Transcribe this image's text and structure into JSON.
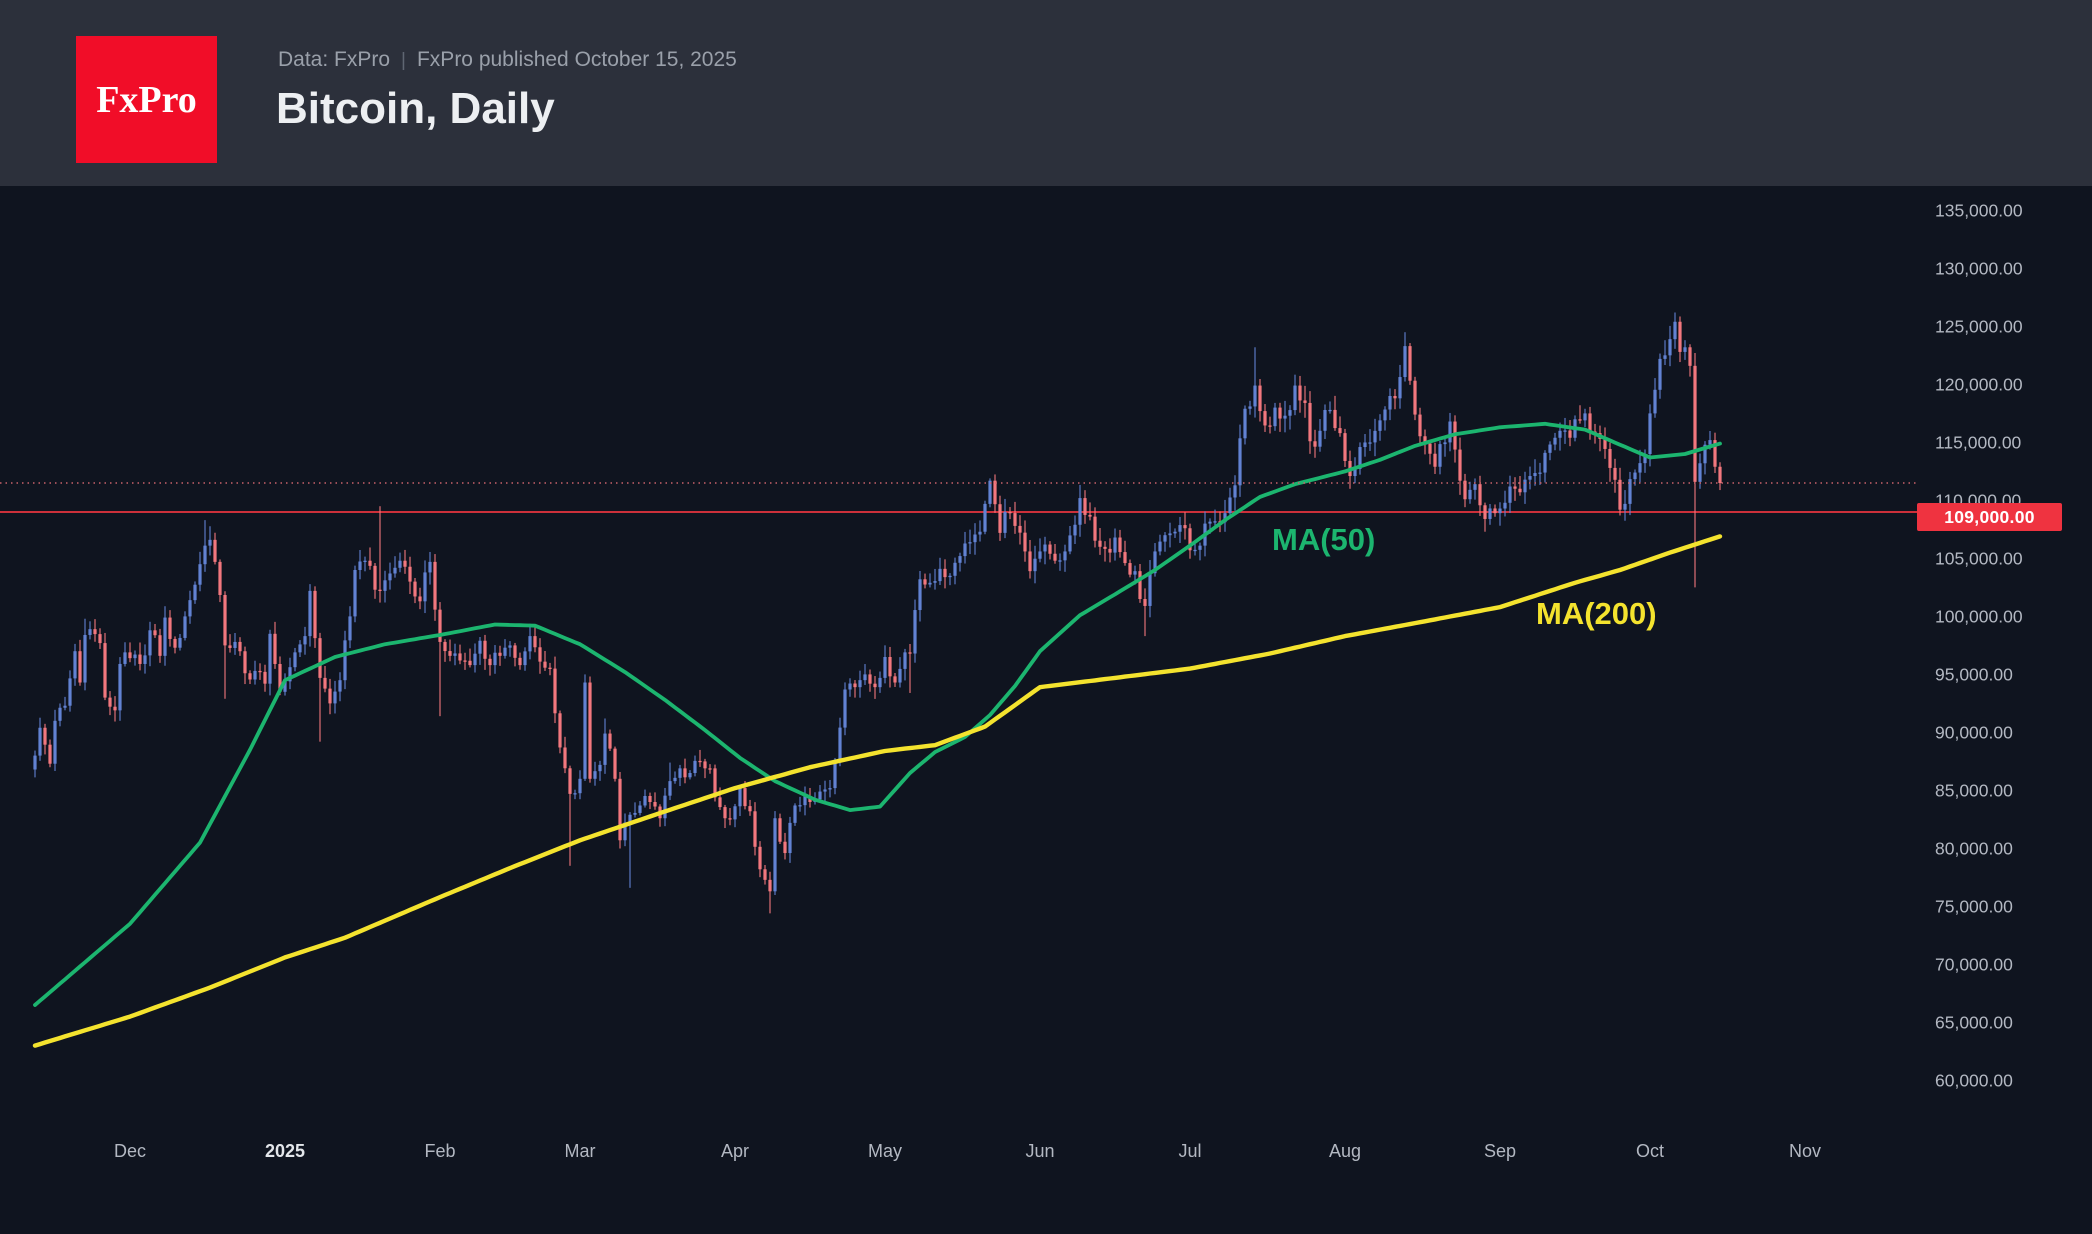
{
  "header": {
    "logo_text": "FxPro",
    "subtitle_data_source": "Data: FxPro",
    "subtitle_separator": "|",
    "subtitle_published": "FxPro published October 15, 2025",
    "title": "Bitcoin, Daily"
  },
  "colors": {
    "background": "#0f141f",
    "header_background": "#2c303b",
    "logo_red": "#f10d28",
    "title_text": "#edeff2",
    "subtitle_text": "#9aa0aa",
    "axis_text": "#b3b8c2",
    "year_tick_text": "#e3e6ea",
    "candle_up": "#6282d3",
    "candle_down": "#f2777e",
    "ma50": "#1cb56f",
    "ma200": "#f4e32e",
    "price_alert_line": "#e8353f",
    "badge_background": "#ef3340",
    "badge_text": "#ffffff",
    "last_price_line": "#c9626a"
  },
  "chart_data": {
    "type": "candlestick",
    "title": "Bitcoin, Daily",
    "units": "USD, values in thousands in anchor arrays",
    "time_range": "mid-Nov 2024 through Oct 15, 2025, daily candles",
    "x_axis": {
      "month_labels": [
        {
          "label": "Dec",
          "day": 19,
          "bold": false
        },
        {
          "label": "2025",
          "day": 50,
          "bold": true
        },
        {
          "label": "Feb",
          "day": 81,
          "bold": false
        },
        {
          "label": "Mar",
          "day": 109,
          "bold": false
        },
        {
          "label": "Apr",
          "day": 140,
          "bold": false
        },
        {
          "label": "May",
          "day": 170,
          "bold": false
        },
        {
          "label": "Jun",
          "day": 201,
          "bold": false
        },
        {
          "label": "Jul",
          "day": 231,
          "bold": false
        },
        {
          "label": "Aug",
          "day": 262,
          "bold": false
        },
        {
          "label": "Sep",
          "day": 293,
          "bold": false
        },
        {
          "label": "Oct",
          "day": 323,
          "bold": false
        },
        {
          "label": "Nov",
          "day": 354,
          "bold": false
        }
      ]
    },
    "y_axis": {
      "tick_values": [
        135000,
        130000,
        125000,
        120000,
        115000,
        110000,
        105000,
        100000,
        95000,
        90000,
        85000,
        80000,
        75000,
        70000,
        65000,
        60000
      ],
      "tick_format": "#,##0.00",
      "range_top": 136500,
      "range_bottom": 58000
    },
    "price_alert": {
      "value": 109000,
      "label": "109,000.00"
    },
    "last_price": {
      "value": 111500,
      "style": "dotted"
    },
    "ma50": {
      "label": "MA(50)",
      "period": 50,
      "points": [
        [
          0,
          66.5
        ],
        [
          19,
          73.5
        ],
        [
          33,
          80.5
        ],
        [
          43,
          88.5
        ],
        [
          50,
          94.5
        ],
        [
          60,
          96.5
        ],
        [
          70,
          97.6
        ],
        [
          81,
          98.4
        ],
        [
          92,
          99.3
        ],
        [
          100,
          99.2
        ],
        [
          109,
          97.6
        ],
        [
          118,
          95.2
        ],
        [
          126,
          92.8
        ],
        [
          134,
          90.2
        ],
        [
          141,
          87.8
        ],
        [
          148,
          85.8
        ],
        [
          156,
          84.2
        ],
        [
          163,
          83.3
        ],
        [
          169,
          83.6
        ],
        [
          175,
          86.5
        ],
        [
          180,
          88.3
        ],
        [
          186,
          89.6
        ],
        [
          191,
          91.5
        ],
        [
          196,
          94.0
        ],
        [
          201,
          97.0
        ],
        [
          209,
          100.1
        ],
        [
          216,
          101.9
        ],
        [
          224,
          104.0
        ],
        [
          231,
          106.1
        ],
        [
          238,
          108.3
        ],
        [
          245,
          110.3
        ],
        [
          252,
          111.4
        ],
        [
          262,
          112.5
        ],
        [
          269,
          113.5
        ],
        [
          276,
          114.7
        ],
        [
          284,
          115.7
        ],
        [
          293,
          116.3
        ],
        [
          302,
          116.6
        ],
        [
          310,
          116.1
        ],
        [
          317,
          114.8
        ],
        [
          323,
          113.7
        ],
        [
          330,
          114.0
        ],
        [
          337,
          114.9
        ]
      ]
    },
    "ma200": {
      "label": "MA(200)",
      "period": 200,
      "points": [
        [
          0,
          63.0
        ],
        [
          19,
          65.5
        ],
        [
          35,
          68.0
        ],
        [
          50,
          70.6
        ],
        [
          62,
          72.3
        ],
        [
          81,
          75.8
        ],
        [
          95,
          78.3
        ],
        [
          109,
          80.7
        ],
        [
          124,
          82.9
        ],
        [
          140,
          85.2
        ],
        [
          155,
          87.0
        ],
        [
          170,
          88.4
        ],
        [
          180,
          88.9
        ],
        [
          190,
          90.5
        ],
        [
          201,
          93.9
        ],
        [
          216,
          94.7
        ],
        [
          231,
          95.5
        ],
        [
          247,
          96.8
        ],
        [
          262,
          98.3
        ],
        [
          277,
          99.5
        ],
        [
          293,
          100.8
        ],
        [
          308,
          102.9
        ],
        [
          317,
          104.0
        ],
        [
          327,
          105.5
        ],
        [
          337,
          106.9
        ]
      ]
    },
    "candles": {
      "day0_date": "2024-11-12",
      "anchor_format": "[day, close, highOverride?, lowOverride?]",
      "anchors": [
        [
          0,
          88.0
        ],
        [
          1,
          90.4
        ],
        [
          3,
          87.3
        ],
        [
          4,
          91.0
        ],
        [
          6,
          92.3
        ],
        [
          8,
          97.0
        ],
        [
          9,
          94.3
        ],
        [
          10,
          98.4,
          99.8
        ],
        [
          11,
          98.9
        ],
        [
          13,
          97.7
        ],
        [
          14,
          93.0
        ],
        [
          16,
          91.9
        ],
        [
          17,
          95.9
        ],
        [
          19,
          96.4
        ],
        [
          21,
          95.9
        ],
        [
          23,
          98.8
        ],
        [
          25,
          96.6
        ],
        [
          26,
          99.9
        ],
        [
          28,
          97.3
        ],
        [
          30,
          100.0
        ],
        [
          31,
          101.4
        ],
        [
          33,
          104.5
        ],
        [
          34,
          106.1,
          108.3
        ],
        [
          35,
          106.6
        ],
        [
          36,
          104.7
        ],
        [
          38,
          97.5,
          null,
          92.9
        ],
        [
          40,
          97.8
        ],
        [
          42,
          95.1
        ],
        [
          44,
          95.3
        ],
        [
          46,
          94.2
        ],
        [
          47,
          98.5
        ],
        [
          49,
          93.5
        ],
        [
          50,
          94.4
        ],
        [
          52,
          96.9
        ],
        [
          54,
          98.3
        ],
        [
          55,
          102.2
        ],
        [
          57,
          94.7,
          null,
          89.2
        ],
        [
          59,
          92.5
        ],
        [
          61,
          94.5
        ],
        [
          63,
          100.0
        ],
        [
          64,
          104.0
        ],
        [
          66,
          104.8
        ],
        [
          68,
          102.3
        ],
        [
          69,
          102.2,
          109.5
        ],
        [
          71,
          103.7
        ],
        [
          73,
          104.8
        ],
        [
          75,
          103.0
        ],
        [
          77,
          101.3
        ],
        [
          79,
          104.7
        ],
        [
          81,
          97.8,
          null,
          91.4
        ],
        [
          83,
          96.6
        ],
        [
          85,
          96.2
        ],
        [
          87,
          95.8
        ],
        [
          89,
          97.9
        ],
        [
          91,
          95.8
        ],
        [
          93,
          96.6
        ],
        [
          95,
          97.5
        ],
        [
          97,
          95.8
        ],
        [
          99,
          98.3
        ],
        [
          101,
          96.1
        ],
        [
          103,
          95.5
        ],
        [
          105,
          88.7
        ],
        [
          107,
          84.7,
          null,
          78.5
        ],
        [
          109,
          86.0
        ],
        [
          110,
          94.3,
          95.0
        ],
        [
          111,
          86.0
        ],
        [
          113,
          87.2
        ],
        [
          114,
          89.9,
          91.2
        ],
        [
          116,
          86.0
        ],
        [
          117,
          80.7
        ],
        [
          119,
          82.9,
          null,
          76.6
        ],
        [
          121,
          83.7
        ],
        [
          123,
          84.0
        ],
        [
          125,
          82.6
        ],
        [
          127,
          85.8,
          87.4
        ],
        [
          129,
          86.9
        ],
        [
          131,
          86.5
        ],
        [
          133,
          87.5
        ],
        [
          135,
          86.9
        ],
        [
          136,
          84.4
        ],
        [
          138,
          82.6
        ],
        [
          139,
          82.5
        ],
        [
          141,
          85.2
        ],
        [
          143,
          83.2
        ],
        [
          145,
          78.2
        ],
        [
          147,
          76.3,
          null,
          74.4
        ],
        [
          148,
          82.6
        ],
        [
          150,
          79.6
        ],
        [
          152,
          83.7
        ],
        [
          154,
          84.5
        ],
        [
          155,
          84.0
        ],
        [
          157,
          84.9
        ],
        [
          159,
          85.2
        ],
        [
          160,
          87.5
        ],
        [
          162,
          93.7
        ],
        [
          164,
          93.9
        ],
        [
          166,
          95.0
        ],
        [
          167,
          94.2
        ],
        [
          169,
          94.7
        ],
        [
          170,
          96.5
        ],
        [
          172,
          94.3
        ],
        [
          174,
          96.9
        ],
        [
          175,
          96.8,
          null,
          93.4
        ],
        [
          177,
          103.2
        ],
        [
          179,
          102.9
        ],
        [
          181,
          104.1
        ],
        [
          183,
          103.5
        ],
        [
          185,
          105.2
        ],
        [
          187,
          106.4
        ],
        [
          189,
          107.3
        ],
        [
          190,
          109.7
        ],
        [
          191,
          111.7,
          111.9
        ],
        [
          193,
          107.2
        ],
        [
          194,
          109.0
        ],
        [
          196,
          107.8
        ],
        [
          198,
          105.6
        ],
        [
          199,
          103.9
        ],
        [
          201,
          105.6
        ],
        [
          203,
          105.4
        ],
        [
          204,
          104.8
        ],
        [
          206,
          105.6
        ],
        [
          208,
          107.9
        ],
        [
          209,
          110.2
        ],
        [
          211,
          108.6
        ],
        [
          213,
          106.0
        ],
        [
          215,
          105.5
        ],
        [
          216,
          106.8
        ],
        [
          218,
          104.6
        ],
        [
          220,
          103.9
        ],
        [
          221,
          101.5
        ],
        [
          222,
          100.9,
          null,
          98.3
        ],
        [
          224,
          105.6
        ],
        [
          226,
          107.0
        ],
        [
          228,
          107.3
        ],
        [
          230,
          107.6
        ],
        [
          231,
          105.7
        ],
        [
          233,
          106.1
        ],
        [
          234,
          108.0
        ],
        [
          236,
          108.2
        ],
        [
          238,
          108.9
        ],
        [
          240,
          111.3
        ],
        [
          242,
          117.9
        ],
        [
          244,
          119.9,
          123.2
        ],
        [
          245,
          117.7
        ],
        [
          247,
          116.4
        ],
        [
          248,
          118.0
        ],
        [
          250,
          117.3
        ],
        [
          252,
          119.9
        ],
        [
          254,
          118.4
        ],
        [
          255,
          115.1
        ],
        [
          257,
          116.0
        ],
        [
          259,
          117.8
        ],
        [
          261,
          115.8
        ],
        [
          262,
          113.4
        ],
        [
          263,
          112.1,
          null,
          111.0
        ],
        [
          265,
          114.6
        ],
        [
          267,
          115.0
        ],
        [
          269,
          116.9
        ],
        [
          271,
          119.0
        ],
        [
          272,
          118.8
        ],
        [
          274,
          123.3,
          124.5
        ],
        [
          276,
          117.4
        ],
        [
          278,
          114.9
        ],
        [
          280,
          112.9
        ],
        [
          282,
          115.0
        ],
        [
          283,
          116.8
        ],
        [
          285,
          111.7
        ],
        [
          286,
          110.1
        ],
        [
          288,
          111.4
        ],
        [
          290,
          108.4,
          null,
          107.3
        ],
        [
          292,
          108.9
        ],
        [
          293,
          109.3
        ],
        [
          295,
          111.2
        ],
        [
          297,
          110.7
        ],
        [
          299,
          112.1
        ],
        [
          301,
          112.4
        ],
        [
          302,
          114.1
        ],
        [
          304,
          115.4
        ],
        [
          305,
          116.0
        ],
        [
          307,
          115.4
        ],
        [
          309,
          116.9
        ],
        [
          310,
          117.5,
          117.9
        ],
        [
          312,
          115.8
        ],
        [
          313,
          115.3
        ],
        [
          315,
          112.8
        ],
        [
          317,
          109.2,
          null,
          108.7
        ],
        [
          318,
          109.7
        ],
        [
          320,
          112.4
        ],
        [
          322,
          114.0
        ],
        [
          323,
          117.5
        ],
        [
          325,
          122.2
        ],
        [
          327,
          123.9
        ],
        [
          328,
          125.4,
          126.2
        ],
        [
          329,
          122.8
        ],
        [
          330,
          123.2
        ],
        [
          331,
          121.6
        ],
        [
          332,
          111.6,
          null,
          102.5
        ],
        [
          333,
          113.2
        ],
        [
          334,
          114.8
        ],
        [
          335,
          115.2
        ],
        [
          336,
          112.9
        ],
        [
          337,
          111.5
        ]
      ]
    }
  }
}
